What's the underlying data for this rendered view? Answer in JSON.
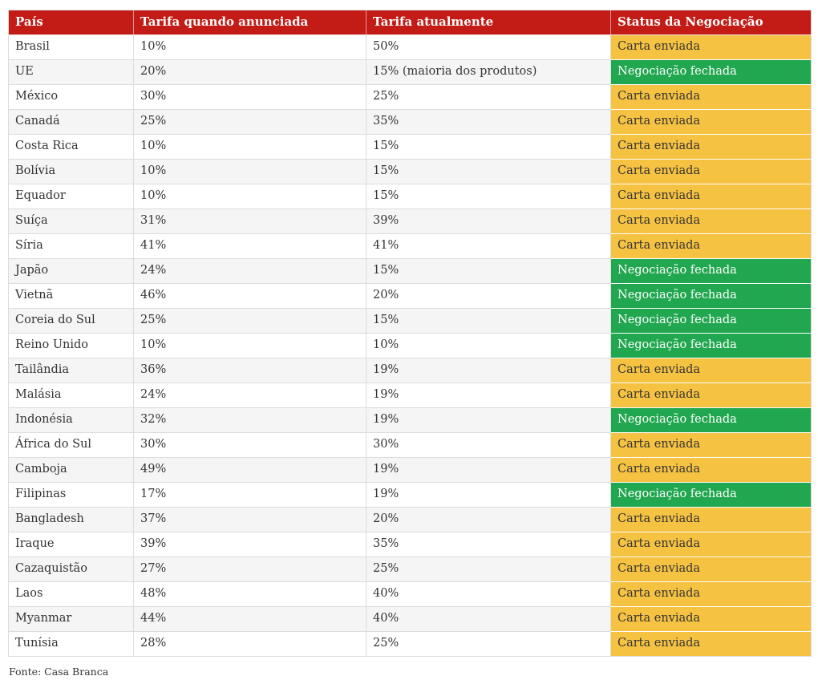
{
  "colors": {
    "header_bg": "#c31c17",
    "header_text": "#ffffff",
    "status_carta_enviada_bg": "#f5c242",
    "status_carta_enviada_text": "#333333",
    "status_negociacao_fechada_bg": "#21a74f",
    "status_negociacao_fechada_text": "#ffffff",
    "row_alt_bg": "#f5f5f5",
    "border": "#dcdcdc",
    "body_text": "#333333"
  },
  "chart_data": {
    "type": "table",
    "title": "",
    "columns": [
      "País",
      "Tarifa quando anunciada",
      "Tarifa atualmente",
      "Status da Negociação"
    ],
    "rows": [
      {
        "pais": "Brasil",
        "tarifa_anunciada": "10%",
        "tarifa_atual": "50%",
        "status": "Carta enviada",
        "status_type": "carta_enviada"
      },
      {
        "pais": "UE",
        "tarifa_anunciada": "20%",
        "tarifa_atual": "15% (maioria dos produtos)",
        "status": "Negociação fechada",
        "status_type": "negociacao_fechada"
      },
      {
        "pais": "México",
        "tarifa_anunciada": "30%",
        "tarifa_atual": "25%",
        "status": "Carta enviada",
        "status_type": "carta_enviada"
      },
      {
        "pais": "Canadá",
        "tarifa_anunciada": "25%",
        "tarifa_atual": "35%",
        "status": "Carta enviada",
        "status_type": "carta_enviada"
      },
      {
        "pais": "Costa Rica",
        "tarifa_anunciada": "10%",
        "tarifa_atual": "15%",
        "status": "Carta enviada",
        "status_type": "carta_enviada"
      },
      {
        "pais": "Bolívia",
        "tarifa_anunciada": "10%",
        "tarifa_atual": "15%",
        "status": "Carta enviada",
        "status_type": "carta_enviada"
      },
      {
        "pais": "Equador",
        "tarifa_anunciada": "10%",
        "tarifa_atual": "15%",
        "status": "Carta enviada",
        "status_type": "carta_enviada"
      },
      {
        "pais": "Suíça",
        "tarifa_anunciada": "31%",
        "tarifa_atual": "39%",
        "status": "Carta enviada",
        "status_type": "carta_enviada"
      },
      {
        "pais": "Síria",
        "tarifa_anunciada": "41%",
        "tarifa_atual": "41%",
        "status": "Carta enviada",
        "status_type": "carta_enviada"
      },
      {
        "pais": "Japão",
        "tarifa_anunciada": "24%",
        "tarifa_atual": "15%",
        "status": "Negociação fechada",
        "status_type": "negociacao_fechada"
      },
      {
        "pais": "Vietnã",
        "tarifa_anunciada": "46%",
        "tarifa_atual": "20%",
        "status": "Negociação fechada",
        "status_type": "negociacao_fechada"
      },
      {
        "pais": "Coreia do Sul",
        "tarifa_anunciada": "25%",
        "tarifa_atual": "15%",
        "status": "Negociação fechada",
        "status_type": "negociacao_fechada"
      },
      {
        "pais": "Reino Unido",
        "tarifa_anunciada": "10%",
        "tarifa_atual": "10%",
        "status": "Negociação fechada",
        "status_type": "negociacao_fechada"
      },
      {
        "pais": "Tailândia",
        "tarifa_anunciada": "36%",
        "tarifa_atual": "19%",
        "status": "Carta enviada",
        "status_type": "carta_enviada"
      },
      {
        "pais": "Malásia",
        "tarifa_anunciada": "24%",
        "tarifa_atual": "19%",
        "status": "Carta enviada",
        "status_type": "carta_enviada"
      },
      {
        "pais": "Indonésia",
        "tarifa_anunciada": "32%",
        "tarifa_atual": "19%",
        "status": "Negociação fechada",
        "status_type": "negociacao_fechada"
      },
      {
        "pais": "África do Sul",
        "tarifa_anunciada": "30%",
        "tarifa_atual": "30%",
        "status": "Carta enviada",
        "status_type": "carta_enviada"
      },
      {
        "pais": "Camboja",
        "tarifa_anunciada": "49%",
        "tarifa_atual": "19%",
        "status": "Carta enviada",
        "status_type": "carta_enviada"
      },
      {
        "pais": "Filipinas",
        "tarifa_anunciada": "17%",
        "tarifa_atual": "19%",
        "status": "Negociação fechada",
        "status_type": "negociacao_fechada"
      },
      {
        "pais": "Bangladesh",
        "tarifa_anunciada": "37%",
        "tarifa_atual": "20%",
        "status": "Carta enviada",
        "status_type": "carta_enviada"
      },
      {
        "pais": "Iraque",
        "tarifa_anunciada": "39%",
        "tarifa_atual": "35%",
        "status": "Carta enviada",
        "status_type": "carta_enviada"
      },
      {
        "pais": "Cazaquistão",
        "tarifa_anunciada": "27%",
        "tarifa_atual": "25%",
        "status": "Carta enviada",
        "status_type": "carta_enviada"
      },
      {
        "pais": "Laos",
        "tarifa_anunciada": "48%",
        "tarifa_atual": "40%",
        "status": "Carta enviada",
        "status_type": "carta_enviada"
      },
      {
        "pais": "Myanmar",
        "tarifa_anunciada": "44%",
        "tarifa_atual": "40%",
        "status": "Carta enviada",
        "status_type": "carta_enviada"
      },
      {
        "pais": "Tunísia",
        "tarifa_anunciada": "28%",
        "tarifa_atual": "25%",
        "status": "Carta enviada",
        "status_type": "carta_enviada"
      }
    ],
    "source": "Fonte: Casa Branca",
    "legend_position": "none",
    "grid": true
  }
}
